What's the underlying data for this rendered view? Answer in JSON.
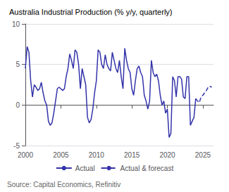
{
  "chart_data": {
    "type": "line",
    "title": "Australia Industrial Production (% y/y, quarterly)",
    "annotations": [
      "Source: Capital Economics, Refinitiv"
    ],
    "xlim": [
      2000,
      2026.5
    ],
    "ylim": [
      -5,
      10
    ],
    "xticks": [
      2000,
      2005,
      2010,
      2015,
      2020,
      2025
    ],
    "yticks": [
      -5,
      0,
      5,
      10
    ],
    "grid": true,
    "legend": "bottom",
    "series": [
      {
        "name": "Actual",
        "color": "#3333aa",
        "line_style": "solid",
        "x": [
          2000.0,
          2000.25,
          2000.5,
          2000.75,
          2001.0,
          2001.25,
          2001.5,
          2001.75,
          2002.0,
          2002.25,
          2002.5,
          2002.75,
          2003.0,
          2003.25,
          2003.5,
          2003.75,
          2004.0,
          2004.25,
          2004.5,
          2004.75,
          2005.0,
          2005.25,
          2005.5,
          2005.75,
          2006.0,
          2006.25,
          2006.5,
          2006.75,
          2007.0,
          2007.25,
          2007.5,
          2007.75,
          2008.0,
          2008.25,
          2008.5,
          2008.75,
          2009.0,
          2009.25,
          2009.5,
          2009.75,
          2010.0,
          2010.25,
          2010.5,
          2010.75,
          2011.0,
          2011.25,
          2011.5,
          2011.75,
          2012.0,
          2012.25,
          2012.5,
          2012.75,
          2013.0,
          2013.25,
          2013.5,
          2013.75,
          2014.0,
          2014.25,
          2014.5,
          2014.75,
          2015.0,
          2015.25,
          2015.5,
          2015.75,
          2016.0,
          2016.25,
          2016.5,
          2016.75,
          2017.0,
          2017.25,
          2017.5,
          2017.75,
          2018.0,
          2018.25,
          2018.5,
          2018.75,
          2019.0,
          2019.25,
          2019.5,
          2019.75,
          2020.0,
          2020.25,
          2020.5,
          2020.75,
          2021.0,
          2021.25,
          2021.5,
          2021.75,
          2022.0,
          2022.25,
          2022.5,
          2022.75,
          2023.0,
          2023.25,
          2023.5,
          2023.75,
          2024.0
        ],
        "values": [
          4.5,
          7.2,
          6.5,
          3.0,
          1.0,
          2.5,
          2.2,
          1.8,
          2.0,
          2.8,
          1.5,
          0.5,
          0.0,
          -2.0,
          -2.5,
          -2.2,
          -1.0,
          0.5,
          2.0,
          2.2,
          2.0,
          1.8,
          2.0,
          3.5,
          4.5,
          6.3,
          5.5,
          4.5,
          6.8,
          6.5,
          5.0,
          2.0,
          4.5,
          3.5,
          2.5,
          -1.5,
          -2.2,
          -1.8,
          -0.5,
          1.5,
          3.0,
          6.8,
          6.5,
          5.0,
          4.5,
          6.2,
          5.0,
          4.5,
          4.2,
          6.5,
          5.5,
          4.5,
          4.0,
          5.5,
          3.5,
          2.0,
          7.0,
          5.5,
          4.5,
          4.0,
          2.0,
          1.2,
          3.0,
          4.5,
          4.8,
          4.0,
          3.5,
          1.2,
          0.5,
          -0.5,
          0.5,
          5.5,
          4.0,
          3.5,
          3.8,
          3.0,
          1.2,
          0.0,
          0.5,
          -1.0,
          -0.5,
          -4.0,
          -3.5,
          3.5,
          3.0,
          1.0,
          3.5,
          3.5,
          3.2,
          1.0,
          0.8,
          3.5,
          3.5,
          -2.5,
          -2.0,
          -1.5,
          0.8
        ]
      },
      {
        "name": "Actual & forecast",
        "color": "#3333aa",
        "line_style": "dashed",
        "x": [
          2024.0,
          2024.25,
          2024.5,
          2024.75,
          2025.0,
          2025.25,
          2025.5,
          2025.75,
          2026.0,
          2026.25
        ],
        "values": [
          0.8,
          0.5,
          0.3,
          1.0,
          1.2,
          1.5,
          1.8,
          2.2,
          2.3,
          2.2
        ]
      }
    ]
  }
}
